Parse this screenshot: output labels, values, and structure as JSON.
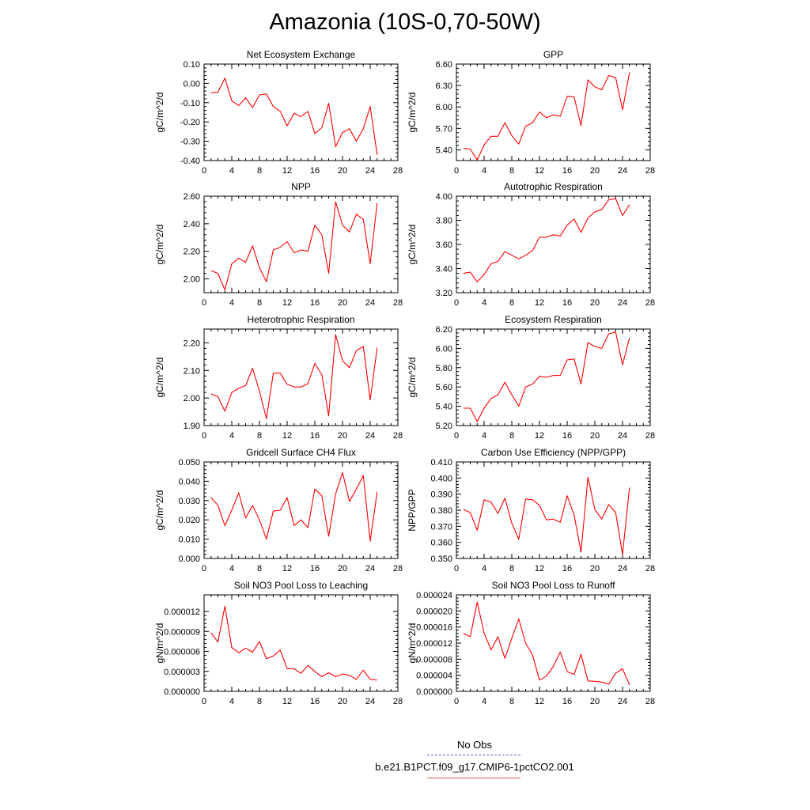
{
  "title": "Amazonia (10S-0,70-50W)",
  "legend": {
    "obs_label": "No Obs",
    "case_label": "b.e21.B1PCT.f09_g17.CMIP6-1pctCO2.001",
    "obs_color": "#5560c8",
    "case_color": "#e05a5a"
  },
  "chart_data": [
    {
      "type": "line",
      "title": "Net Ecosystem Exchange",
      "ylabel": "gC/m^2/d",
      "xlim": [
        0,
        28
      ],
      "xticks": [
        "0",
        "4",
        "8",
        "12",
        "16",
        "20",
        "24",
        "28"
      ],
      "ylim": [
        -0.4,
        0.1
      ],
      "yticks": [
        "0.10",
        "0.00",
        "-0.10",
        "-0.20",
        "-0.30",
        "-0.40"
      ],
      "series": [
        {
          "color": "#ff0000",
          "x": [
            1,
            2,
            3,
            4,
            5,
            6,
            7,
            8,
            9,
            10,
            11,
            12,
            13,
            14,
            15,
            16,
            17,
            18,
            19,
            20,
            21,
            22,
            23,
            24,
            25
          ],
          "y": [
            -0.048,
            -0.045,
            0.027,
            -0.09,
            -0.115,
            -0.075,
            -0.125,
            -0.06,
            -0.055,
            -0.12,
            -0.145,
            -0.22,
            -0.155,
            -0.172,
            -0.145,
            -0.26,
            -0.23,
            -0.103,
            -0.328,
            -0.255,
            -0.235,
            -0.3,
            -0.235,
            -0.12,
            -0.37
          ]
        }
      ]
    },
    {
      "type": "line",
      "title": "GPP",
      "ylabel": "gC/m^2/d",
      "xlim": [
        0,
        28
      ],
      "xticks": [
        "0",
        "4",
        "8",
        "12",
        "16",
        "20",
        "24",
        "28"
      ],
      "ylim": [
        5.25,
        6.6
      ],
      "yticks": [
        "6.60",
        "6.30",
        "6.00",
        "5.70",
        "5.40"
      ],
      "series": [
        {
          "color": "#ff0000",
          "x": [
            1,
            2,
            3,
            4,
            5,
            6,
            7,
            8,
            9,
            10,
            11,
            12,
            13,
            14,
            15,
            16,
            17,
            18,
            19,
            20,
            21,
            22,
            23,
            24,
            25
          ],
          "y": [
            5.42,
            5.41,
            5.26,
            5.47,
            5.59,
            5.59,
            5.78,
            5.6,
            5.48,
            5.73,
            5.78,
            5.93,
            5.85,
            5.89,
            5.87,
            6.15,
            6.14,
            5.74,
            6.38,
            6.28,
            6.24,
            6.44,
            6.41,
            5.96,
            6.48
          ]
        }
      ]
    },
    {
      "type": "line",
      "title": "NPP",
      "ylabel": "gC/m^2/d",
      "xlim": [
        0,
        28
      ],
      "xticks": [
        "0",
        "4",
        "8",
        "12",
        "16",
        "20",
        "24",
        "28"
      ],
      "ylim": [
        1.9,
        2.6
      ],
      "yticks": [
        "2.60",
        "2.40",
        "2.20",
        "2.00"
      ],
      "series": [
        {
          "color": "#ff0000",
          "x": [
            1,
            2,
            3,
            4,
            5,
            6,
            7,
            8,
            9,
            10,
            11,
            12,
            13,
            14,
            15,
            16,
            17,
            18,
            19,
            20,
            21,
            22,
            23,
            24,
            25
          ],
          "y": [
            2.06,
            2.04,
            1.92,
            2.11,
            2.15,
            2.12,
            2.24,
            2.08,
            1.98,
            2.21,
            2.23,
            2.27,
            2.19,
            2.21,
            2.2,
            2.39,
            2.32,
            2.04,
            2.56,
            2.39,
            2.34,
            2.47,
            2.43,
            2.11,
            2.55
          ]
        }
      ]
    },
    {
      "type": "line",
      "title": "Autotrophic Respiration",
      "ylabel": "gC/m^2/d",
      "xlim": [
        0,
        28
      ],
      "xticks": [
        "0",
        "4",
        "8",
        "12",
        "16",
        "20",
        "24",
        "28"
      ],
      "ylim": [
        3.2,
        4.0
      ],
      "yticks": [
        "4.00",
        "3.80",
        "3.60",
        "3.40",
        "3.20"
      ],
      "series": [
        {
          "color": "#ff0000",
          "x": [
            1,
            2,
            3,
            4,
            5,
            6,
            7,
            8,
            9,
            10,
            11,
            12,
            13,
            14,
            15,
            16,
            17,
            18,
            19,
            20,
            21,
            22,
            23,
            24,
            25
          ],
          "y": [
            3.36,
            3.37,
            3.29,
            3.35,
            3.44,
            3.46,
            3.54,
            3.51,
            3.48,
            3.51,
            3.55,
            3.66,
            3.66,
            3.68,
            3.67,
            3.76,
            3.81,
            3.7,
            3.82,
            3.87,
            3.89,
            3.97,
            3.98,
            3.84,
            3.93
          ]
        }
      ]
    },
    {
      "type": "line",
      "title": "Heterotrophic Respiration",
      "ylabel": "gC/m^2/d",
      "xlim": [
        0,
        28
      ],
      "xticks": [
        "0",
        "4",
        "8",
        "12",
        "16",
        "20",
        "24",
        "28"
      ],
      "ylim": [
        1.9,
        2.25
      ],
      "yticks": [
        "2.20",
        "2.10",
        "2.00",
        "1.90"
      ],
      "series": [
        {
          "color": "#ff0000",
          "x": [
            1,
            2,
            3,
            4,
            5,
            6,
            7,
            8,
            9,
            10,
            11,
            12,
            13,
            14,
            15,
            16,
            17,
            18,
            19,
            20,
            21,
            22,
            23,
            24,
            25
          ],
          "y": [
            2.015,
            2.005,
            1.952,
            2.02,
            2.035,
            2.045,
            2.108,
            2.025,
            1.925,
            2.09,
            2.09,
            2.05,
            2.04,
            2.04,
            2.052,
            2.125,
            2.085,
            1.935,
            2.23,
            2.135,
            2.11,
            2.172,
            2.187,
            1.993,
            2.182
          ]
        }
      ]
    },
    {
      "type": "line",
      "title": "Ecosystem Respiration",
      "ylabel": "gC/m^2/d",
      "xlim": [
        0,
        28
      ],
      "xticks": [
        "0",
        "4",
        "8",
        "12",
        "16",
        "20",
        "24",
        "28"
      ],
      "ylim": [
        5.2,
        6.2
      ],
      "yticks": [
        "6.20",
        "6.00",
        "5.80",
        "5.60",
        "5.40",
        "5.20"
      ],
      "series": [
        {
          "color": "#ff0000",
          "x": [
            1,
            2,
            3,
            4,
            5,
            6,
            7,
            8,
            9,
            10,
            11,
            12,
            13,
            14,
            15,
            16,
            17,
            18,
            19,
            20,
            21,
            22,
            23,
            24,
            25
          ],
          "y": [
            5.38,
            5.38,
            5.24,
            5.38,
            5.48,
            5.52,
            5.65,
            5.52,
            5.4,
            5.6,
            5.63,
            5.71,
            5.7,
            5.72,
            5.72,
            5.88,
            5.89,
            5.63,
            6.06,
            6.02,
            6.0,
            6.15,
            6.17,
            5.83,
            6.11
          ]
        }
      ]
    },
    {
      "type": "line",
      "title": "Gridcell Surface CH4 Flux",
      "ylabel": "gC/m^2/d",
      "xlim": [
        0,
        28
      ],
      "xticks": [
        "0",
        "4",
        "8",
        "12",
        "16",
        "20",
        "24",
        "28"
      ],
      "ylim": [
        0.0,
        0.05
      ],
      "yticks": [
        "0.050",
        "0.040",
        "0.030",
        "0.020",
        "0.010",
        "0.000"
      ],
      "series": [
        {
          "color": "#ff0000",
          "x": [
            1,
            2,
            3,
            4,
            5,
            6,
            7,
            8,
            9,
            10,
            11,
            12,
            13,
            14,
            15,
            16,
            17,
            18,
            19,
            20,
            21,
            22,
            23,
            24,
            25
          ],
          "y": [
            0.0315,
            0.0275,
            0.017,
            0.025,
            0.034,
            0.021,
            0.0275,
            0.02,
            0.01,
            0.0245,
            0.025,
            0.0315,
            0.017,
            0.02,
            0.016,
            0.036,
            0.0325,
            0.0115,
            0.0335,
            0.0445,
            0.0295,
            0.036,
            0.043,
            0.009,
            0.0345
          ]
        }
      ]
    },
    {
      "type": "line",
      "title": "Carbon Use Efficiency (NPP/GPP)",
      "ylabel": "NPP/GPP",
      "xlim": [
        0,
        28
      ],
      "xticks": [
        "0",
        "4",
        "8",
        "12",
        "16",
        "20",
        "24",
        "28"
      ],
      "ylim": [
        0.35,
        0.41
      ],
      "yticks": [
        "0.410",
        "0.400",
        "0.390",
        "0.380",
        "0.370",
        "0.360",
        "0.350"
      ],
      "series": [
        {
          "color": "#ff0000",
          "x": [
            1,
            2,
            3,
            4,
            5,
            6,
            7,
            8,
            9,
            10,
            11,
            12,
            13,
            14,
            15,
            16,
            17,
            18,
            19,
            20,
            21,
            22,
            23,
            24,
            25
          ],
          "y": [
            0.3805,
            0.3785,
            0.3675,
            0.3865,
            0.385,
            0.378,
            0.3875,
            0.372,
            0.362,
            0.387,
            0.3865,
            0.383,
            0.374,
            0.3745,
            0.3725,
            0.389,
            0.377,
            0.354,
            0.4005,
            0.3805,
            0.3745,
            0.3835,
            0.3785,
            0.3525,
            0.394
          ]
        }
      ]
    },
    {
      "type": "line",
      "title": "Soil NO3 Pool Loss to Leaching",
      "ylabel": "gN/m^2/d",
      "xlim": [
        0,
        28
      ],
      "xticks": [
        "0",
        "4",
        "8",
        "12",
        "16",
        "20",
        "24",
        "28"
      ],
      "ylim": [
        0.0,
        1.45e-05
      ],
      "yticks": [
        "0.000012",
        "0.000009",
        "0.000006",
        "0.000003",
        "0.000000"
      ],
      "ytick_values": [
        1.2e-05,
        9e-06,
        6e-06,
        3e-06,
        0.0
      ],
      "series": [
        {
          "color": "#ff0000",
          "x": [
            1,
            2,
            3,
            4,
            5,
            6,
            7,
            8,
            9,
            10,
            11,
            12,
            13,
            14,
            15,
            16,
            17,
            18,
            19,
            20,
            21,
            22,
            23,
            24,
            25
          ],
          "y": [
            8.8e-06,
            7.4e-06,
            1.28e-05,
            6.6e-06,
            5.8e-06,
            6.5e-06,
            5.9e-06,
            7.5e-06,
            4.9e-06,
            5.3e-06,
            6.2e-06,
            3.4e-06,
            3.4e-06,
            2.7e-06,
            3.9e-06,
            3e-06,
            2.2e-06,
            2.8e-06,
            2.2e-06,
            2.6e-06,
            2.4e-06,
            1.8e-06,
            3.2e-06,
            1.8e-06,
            1.7e-06
          ]
        }
      ]
    },
    {
      "type": "line",
      "title": "Soil NO3 Pool Loss to Runoff",
      "ylabel": "gN/m^2/d",
      "xlim": [
        0,
        28
      ],
      "xticks": [
        "0",
        "4",
        "8",
        "12",
        "16",
        "20",
        "24",
        "28"
      ],
      "ylim": [
        0.0,
        2.4e-05
      ],
      "yticks": [
        "0.000024",
        "0.000020",
        "0.000016",
        "0.000012",
        "0.000008",
        "0.000004",
        "0.000000"
      ],
      "ytick_values": [
        2.4e-05,
        2e-05,
        1.6e-05,
        1.2e-05,
        8e-06,
        4e-06,
        0.0
      ],
      "series": [
        {
          "color": "#ff0000",
          "x": [
            1,
            2,
            3,
            4,
            5,
            6,
            7,
            8,
            9,
            10,
            11,
            12,
            13,
            14,
            15,
            16,
            17,
            18,
            19,
            20,
            21,
            22,
            23,
            24,
            25
          ],
          "y": [
            1.44e-05,
            1.36e-05,
            2.22e-05,
            1.45e-05,
            1.03e-05,
            1.36e-05,
            8.2e-06,
            1.32e-05,
            1.8e-05,
            1.2e-05,
            9e-06,
            2.8e-06,
            3.8e-06,
            6.2e-06,
            9.8e-06,
            4.9e-06,
            4.2e-06,
            9.2e-06,
            2.6e-06,
            2.5e-06,
            2.3e-06,
            1.8e-06,
            4.5e-06,
            5.6e-06,
            1.6e-06
          ]
        }
      ]
    }
  ]
}
